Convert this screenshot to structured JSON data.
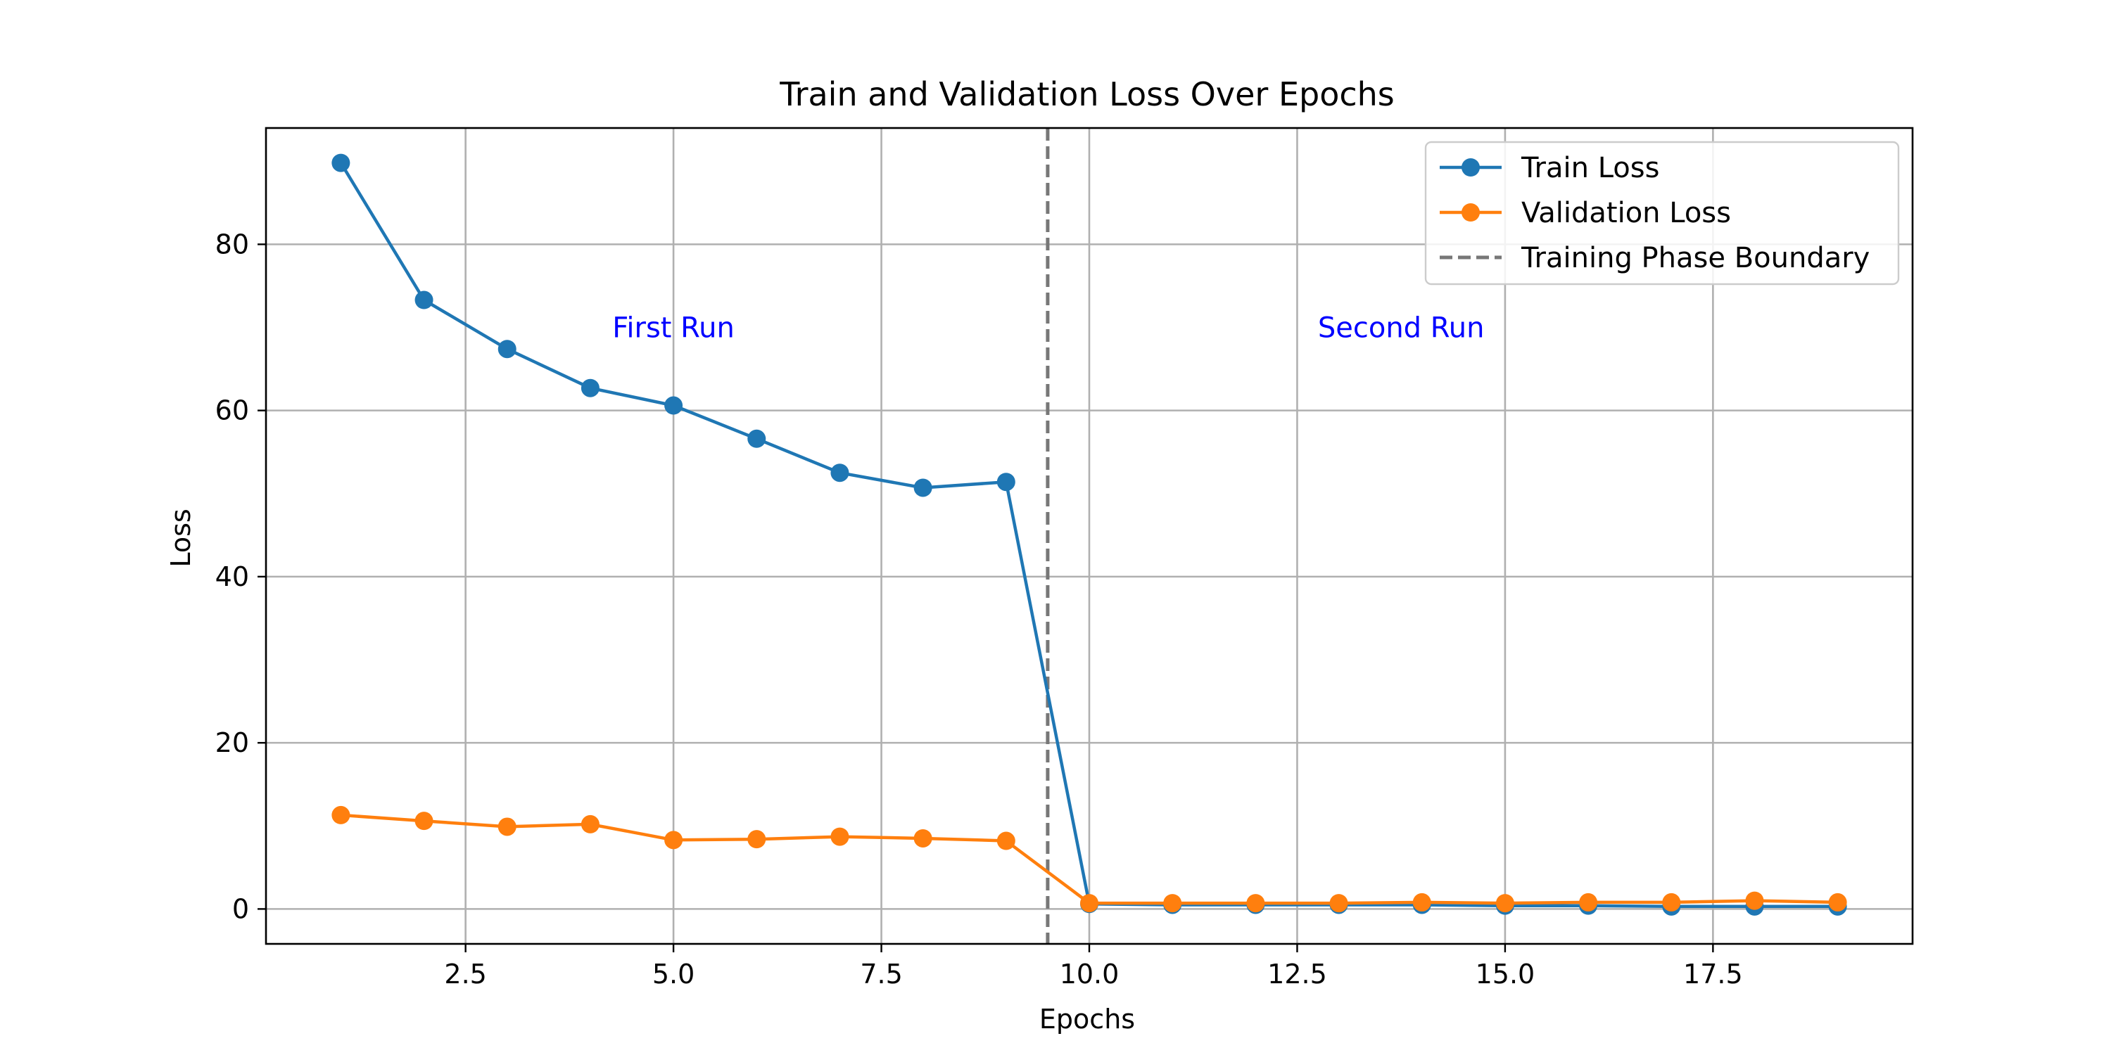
{
  "chart_data": {
    "type": "line",
    "title": "Train and Validation Loss Over Epochs",
    "xlabel": "Epochs",
    "ylabel": "Loss",
    "xlim": [
      0.1,
      19.9
    ],
    "ylim": [
      -4.2,
      94.0
    ],
    "xticks": [
      2.5,
      5.0,
      7.5,
      10.0,
      12.5,
      15.0,
      17.5
    ],
    "xtick_labels": [
      "2.5",
      "5.0",
      "7.5",
      "10.0",
      "12.5",
      "15.0",
      "17.5"
    ],
    "yticks": [
      0,
      20,
      40,
      60,
      80
    ],
    "ytick_labels": [
      "0",
      "20",
      "40",
      "60",
      "80"
    ],
    "grid": true,
    "legend_position": "top-right",
    "series": [
      {
        "name": "Train Loss",
        "color": "#1f77b4",
        "marker": "circle",
        "x": [
          1,
          2,
          3,
          4,
          5,
          6,
          7,
          8,
          9,
          10,
          11,
          12,
          13,
          14,
          15,
          16,
          17,
          18,
          19
        ],
        "values": [
          89.8,
          73.3,
          67.4,
          62.7,
          60.6,
          56.6,
          52.5,
          50.7,
          51.4,
          0.6,
          0.5,
          0.5,
          0.5,
          0.5,
          0.4,
          0.4,
          0.3,
          0.3,
          0.3
        ]
      },
      {
        "name": "Validation Loss",
        "color": "#ff7f0e",
        "marker": "circle",
        "x": [
          1,
          2,
          3,
          4,
          5,
          6,
          7,
          8,
          9,
          10,
          11,
          12,
          13,
          14,
          15,
          16,
          17,
          18,
          19
        ],
        "values": [
          11.3,
          10.6,
          9.9,
          10.2,
          8.3,
          8.4,
          8.7,
          8.5,
          8.2,
          0.7,
          0.7,
          0.7,
          0.7,
          0.8,
          0.7,
          0.8,
          0.8,
          1.0,
          0.8
        ]
      }
    ],
    "vlines": [
      {
        "name": "Training Phase Boundary",
        "x": 9.5,
        "color": "#777777",
        "style": "dashed"
      }
    ],
    "annotations": [
      {
        "text": "First Run",
        "x": 5.0,
        "y": 70,
        "color": "#0000ff"
      },
      {
        "text": "Second Run",
        "x": 13.75,
        "y": 70,
        "color": "#0000ff"
      }
    ]
  }
}
